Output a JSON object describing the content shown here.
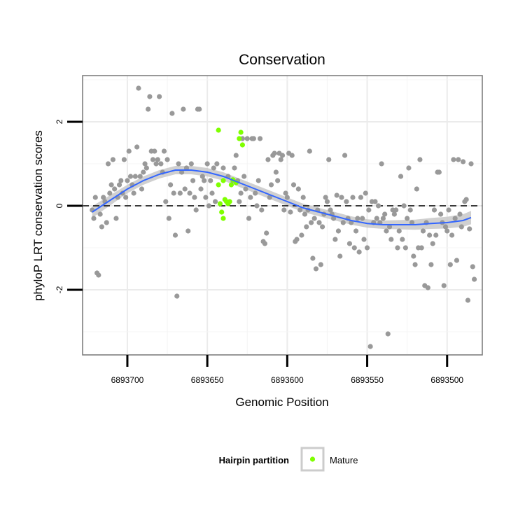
{
  "chart_data": {
    "type": "scatter",
    "title": "Conservation",
    "xlabel": "Genomic Position",
    "ylabel": "phyloP LRT conservation scores",
    "x_reversed": true,
    "xlim": [
      6893478,
      6893728
    ],
    "ylim": [
      -3.55,
      3.1
    ],
    "x_ticks": [
      6893700,
      6893650,
      6893600,
      6893550,
      6893500
    ],
    "x_tick_labels": [
      "6893700",
      "6893650",
      "6893600",
      "6893550",
      "6893500"
    ],
    "y_ticks": [
      2,
      0,
      -2
    ],
    "y_tick_labels": [
      "2",
      "0",
      "-2"
    ],
    "reference_line": {
      "y": 0,
      "style": "dashed"
    },
    "grid": true,
    "colors": {
      "background": "#ffffff",
      "panel_border": "#7f7f7f",
      "grid_major": "#ebebeb",
      "points": "#999999",
      "mature": "#7fff00",
      "smooth": "#3366ff",
      "ribbon": "#c8c8c8"
    },
    "legend": {
      "title": "Hairpin partition",
      "position": "bottom",
      "entries": [
        {
          "label": "Mature",
          "color": "#7fff00"
        }
      ]
    },
    "smooth": {
      "x": [
        6893722,
        6893710,
        6893700,
        6893690,
        6893680,
        6893670,
        6893660,
        6893650,
        6893640,
        6893630,
        6893620,
        6893610,
        6893600,
        6893590,
        6893580,
        6893570,
        6893560,
        6893550,
        6893540,
        6893530,
        6893520,
        6893510,
        6893500,
        6893490,
        6893485
      ],
      "y": [
        -0.15,
        0.15,
        0.4,
        0.6,
        0.75,
        0.85,
        0.85,
        0.8,
        0.7,
        0.55,
        0.4,
        0.25,
        0.1,
        -0.05,
        -0.15,
        -0.25,
        -0.35,
        -0.42,
        -0.45,
        -0.45,
        -0.45,
        -0.42,
        -0.4,
        -0.35,
        -0.28
      ],
      "ribbon_half_width": [
        0.14,
        0.12,
        0.1,
        0.1,
        0.1,
        0.1,
        0.1,
        0.1,
        0.1,
        0.1,
        0.1,
        0.1,
        0.1,
        0.1,
        0.1,
        0.1,
        0.1,
        0.1,
        0.1,
        0.11,
        0.12,
        0.13,
        0.14,
        0.15,
        0.16
      ]
    },
    "series": [
      {
        "name": "Mature",
        "color": "#7fff00",
        "points": [
          [
            6893643,
            1.8
          ],
          [
            6893643,
            0.5
          ],
          [
            6893642,
            0.05
          ],
          [
            6893641,
            -0.15
          ],
          [
            6893640,
            0.6
          ],
          [
            6893640,
            -0.3
          ],
          [
            6893639,
            0.15
          ],
          [
            6893638,
            0.1
          ],
          [
            6893637,
            0.05
          ],
          [
            6893636,
            0.1
          ],
          [
            6893635,
            0.5
          ],
          [
            6893634,
            0.62
          ],
          [
            6893632,
            0.55
          ],
          [
            6893630,
            1.6
          ],
          [
            6893629,
            1.75
          ],
          [
            6893628,
            1.45
          ]
        ]
      },
      {
        "name": "",
        "color": "#999999",
        "points": [
          [
            6893722,
            -0.1
          ],
          [
            6893721,
            -0.3
          ],
          [
            6893720,
            0.2
          ],
          [
            6893719,
            -1.6
          ],
          [
            6893718,
            -1.65
          ],
          [
            6893717,
            -0.2
          ],
          [
            6893716,
            -0.5
          ],
          [
            6893715,
            0.2
          ],
          [
            6893714,
            0.1
          ],
          [
            6893713,
            -0.4
          ],
          [
            6893712,
            1.0
          ],
          [
            6893711,
            0.3
          ],
          [
            6893710,
            0.5
          ],
          [
            6893709,
            1.1
          ],
          [
            6893708,
            0.4
          ],
          [
            6893707,
            -0.3
          ],
          [
            6893706,
            0.2
          ],
          [
            6893705,
            0.5
          ],
          [
            6893704,
            0.6
          ],
          [
            6893703,
            0.3
          ],
          [
            6893702,
            1.1
          ],
          [
            6893701,
            0.2
          ],
          [
            6893700,
            0.6
          ],
          [
            6893699,
            1.3
          ],
          [
            6893698,
            0.7
          ],
          [
            6893697,
            0.5
          ],
          [
            6893696,
            0.3
          ],
          [
            6893695,
            0.7
          ],
          [
            6893694,
            1.4
          ],
          [
            6893693,
            2.8
          ],
          [
            6893692,
            0.7
          ],
          [
            6893691,
            0.4
          ],
          [
            6893690,
            0.8
          ],
          [
            6893689,
            1.0
          ],
          [
            6893688,
            0.9
          ],
          [
            6893687,
            2.3
          ],
          [
            6893686,
            2.6
          ],
          [
            6893685,
            1.3
          ],
          [
            6893684,
            1.1
          ],
          [
            6893683,
            1.3
          ],
          [
            6893682,
            1.0
          ],
          [
            6893681,
            1.1
          ],
          [
            6893680,
            2.6
          ],
          [
            6893679,
            1.0
          ],
          [
            6893678,
            0.8
          ],
          [
            6893677,
            1.3
          ],
          [
            6893676,
            0.1
          ],
          [
            6893675,
            1.1
          ],
          [
            6893674,
            -0.3
          ],
          [
            6893673,
            0.5
          ],
          [
            6893672,
            2.2
          ],
          [
            6893671,
            0.3
          ],
          [
            6893670,
            -0.7
          ],
          [
            6893669,
            -2.15
          ],
          [
            6893668,
            1.0
          ],
          [
            6893667,
            0.3
          ],
          [
            6893666,
            0.8
          ],
          [
            6893665,
            2.3
          ],
          [
            6893664,
            0.4
          ],
          [
            6893663,
            0.9
          ],
          [
            6893662,
            -0.6
          ],
          [
            6893661,
            0.3
          ],
          [
            6893660,
            1.0
          ],
          [
            6893659,
            0.6
          ],
          [
            6893658,
            0.2
          ],
          [
            6893657,
            -0.1
          ],
          [
            6893656,
            2.3
          ],
          [
            6893655,
            2.3
          ],
          [
            6893654,
            0.4
          ],
          [
            6893653,
            0.7
          ],
          [
            6893652,
            0.6
          ],
          [
            6893651,
            0.2
          ],
          [
            6893650,
            1.0
          ],
          [
            6893649,
            0.0
          ],
          [
            6893648,
            0.6
          ],
          [
            6893647,
            0.3
          ],
          [
            6893646,
            0.9
          ],
          [
            6893645,
            0.1
          ],
          [
            6893644,
            1.0
          ],
          [
            6893640,
            0.9
          ],
          [
            6893637,
            0.7
          ],
          [
            6893634,
            0.6
          ],
          [
            6893633,
            0.9
          ],
          [
            6893632,
            1.2
          ],
          [
            6893631,
            0.6
          ],
          [
            6893630,
            0.1
          ],
          [
            6893629,
            0.3
          ],
          [
            6893628,
            1.6
          ],
          [
            6893627,
            0.7
          ],
          [
            6893626,
            0.4
          ],
          [
            6893625,
            1.6
          ],
          [
            6893624,
            -0.3
          ],
          [
            6893623,
            0.2
          ],
          [
            6893622,
            1.6
          ],
          [
            6893621,
            1.6
          ],
          [
            6893620,
            0.3
          ],
          [
            6893619,
            0.0
          ],
          [
            6893618,
            0.6
          ],
          [
            6893617,
            1.6
          ],
          [
            6893616,
            -0.1
          ],
          [
            6893615,
            -0.85
          ],
          [
            6893614,
            -0.9
          ],
          [
            6893613,
            -0.65
          ],
          [
            6893612,
            1.1
          ],
          [
            6893611,
            0.2
          ],
          [
            6893610,
            0.5
          ],
          [
            6893609,
            1.2
          ],
          [
            6893608,
            1.25
          ],
          [
            6893607,
            0.8
          ],
          [
            6893606,
            0.6
          ],
          [
            6893605,
            1.25
          ],
          [
            6893604,
            1.1
          ],
          [
            6893603,
            1.2
          ],
          [
            6893602,
            -0.1
          ],
          [
            6893601,
            0.3
          ],
          [
            6893600,
            0.2
          ],
          [
            6893599,
            1.25
          ],
          [
            6893598,
            -0.15
          ],
          [
            6893597,
            1.2
          ],
          [
            6893596,
            0.5
          ],
          [
            6893595,
            -0.85
          ],
          [
            6893594,
            -0.8
          ],
          [
            6893593,
            0.4
          ],
          [
            6893592,
            -0.1
          ],
          [
            6893591,
            -0.7
          ],
          [
            6893590,
            0.2
          ],
          [
            6893589,
            -0.2
          ],
          [
            6893588,
            -0.5
          ],
          [
            6893587,
            -0.1
          ],
          [
            6893586,
            1.3
          ],
          [
            6893585,
            -0.4
          ],
          [
            6893584,
            -1.25
          ],
          [
            6893583,
            -0.3
          ],
          [
            6893582,
            -1.5
          ],
          [
            6893581,
            -0.1
          ],
          [
            6893580,
            -0.4
          ],
          [
            6893579,
            -1.4
          ],
          [
            6893578,
            -0.5
          ],
          [
            6893577,
            -0.2
          ],
          [
            6893576,
            0.2
          ],
          [
            6893575,
            0.1
          ],
          [
            6893574,
            1.1
          ],
          [
            6893573,
            -0.1
          ],
          [
            6893572,
            -0.2
          ],
          [
            6893571,
            -0.3
          ],
          [
            6893570,
            -0.8
          ],
          [
            6893569,
            0.25
          ],
          [
            6893568,
            -0.6
          ],
          [
            6893567,
            -1.2
          ],
          [
            6893566,
            0.2
          ],
          [
            6893565,
            -0.4
          ],
          [
            6893564,
            1.2
          ],
          [
            6893563,
            0.1
          ],
          [
            6893562,
            -0.3
          ],
          [
            6893561,
            -0.9
          ],
          [
            6893560,
            -0.4
          ],
          [
            6893559,
            0.2
          ],
          [
            6893558,
            -1.0
          ],
          [
            6893557,
            -0.6
          ],
          [
            6893556,
            -0.3
          ],
          [
            6893555,
            -1.1
          ],
          [
            6893554,
            0.2
          ],
          [
            6893553,
            -0.3
          ],
          [
            6893552,
            -0.8
          ],
          [
            6893551,
            0.3
          ],
          [
            6893550,
            -1.0
          ],
          [
            6893549,
            -0.1
          ],
          [
            6893548,
            -3.35
          ],
          [
            6893547,
            0.1
          ],
          [
            6893546,
            -0.4
          ],
          [
            6893545,
            0.1
          ],
          [
            6893544,
            -0.3
          ],
          [
            6893543,
            0.0
          ],
          [
            6893542,
            -0.4
          ],
          [
            6893541,
            1.0
          ],
          [
            6893540,
            -0.3
          ],
          [
            6893539,
            -0.2
          ],
          [
            6893538,
            -0.6
          ],
          [
            6893537,
            -3.05
          ],
          [
            6893536,
            -0.5
          ],
          [
            6893535,
            -0.8
          ],
          [
            6893534,
            -0.1
          ],
          [
            6893533,
            -0.2
          ],
          [
            6893532,
            -0.1
          ],
          [
            6893531,
            -1.0
          ],
          [
            6893530,
            -0.6
          ],
          [
            6893529,
            0.7
          ],
          [
            6893528,
            -0.8
          ],
          [
            6893527,
            0.0
          ],
          [
            6893526,
            -1.0
          ],
          [
            6893525,
            -0.3
          ],
          [
            6893524,
            0.9
          ],
          [
            6893523,
            -0.1
          ],
          [
            6893522,
            -0.4
          ],
          [
            6893521,
            -1.2
          ],
          [
            6893520,
            -1.4
          ],
          [
            6893519,
            0.4
          ],
          [
            6893518,
            -1.0
          ],
          [
            6893517,
            1.1
          ],
          [
            6893516,
            -1.0
          ],
          [
            6893515,
            -0.6
          ],
          [
            6893514,
            -1.9
          ],
          [
            6893513,
            -0.4
          ],
          [
            6893512,
            -1.95
          ],
          [
            6893511,
            -0.7
          ],
          [
            6893510,
            -1.4
          ],
          [
            6893509,
            -0.9
          ],
          [
            6893508,
            -0.1
          ],
          [
            6893507,
            -0.7
          ],
          [
            6893506,
            0.8
          ],
          [
            6893505,
            0.8
          ],
          [
            6893504,
            -0.2
          ],
          [
            6893503,
            -0.4
          ],
          [
            6893502,
            -1.9
          ],
          [
            6893501,
            -0.5
          ],
          [
            6893500,
            -0.6
          ],
          [
            6893499,
            -0.1
          ],
          [
            6893498,
            -1.4
          ],
          [
            6893497,
            -0.7
          ],
          [
            6893496,
            1.1
          ],
          [
            6893495,
            -0.3
          ],
          [
            6893494,
            -1.3
          ],
          [
            6893493,
            1.1
          ],
          [
            6893492,
            -0.2
          ],
          [
            6893491,
            -0.5
          ],
          [
            6893490,
            1.05
          ],
          [
            6893489,
            0.1
          ],
          [
            6893488,
            0.15
          ],
          [
            6893487,
            -2.25
          ],
          [
            6893486,
            -0.55
          ],
          [
            6893485,
            1.0
          ],
          [
            6893484,
            -1.45
          ],
          [
            6893483,
            -1.75
          ]
        ]
      }
    ]
  }
}
